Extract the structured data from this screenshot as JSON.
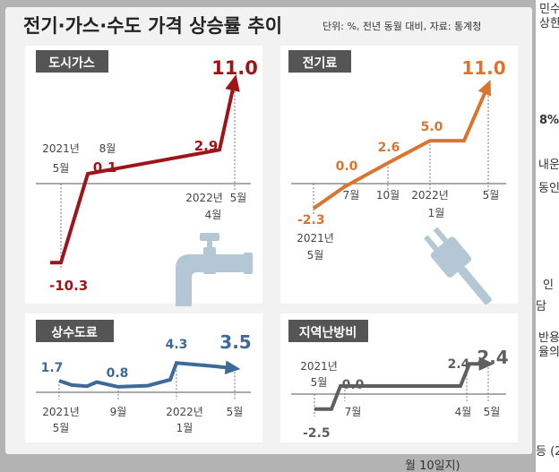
{
  "header": {
    "title": "전기·가스·수도 가격 상승률 추이",
    "unit_note": "단위: %, 전년 동월 대비, 자료: 통계청"
  },
  "side_fragments": [
    "민수",
    "상한",
    "8%",
    "내운",
    "동인",
    "인",
    "담",
    "반용",
    "율의",
    "등 (2",
    "월 10일지)"
  ],
  "colors": {
    "background": "#f2f2f2",
    "page_bg": "#b3b3b3",
    "panel_bg": "#ffffff",
    "label_bg": "#555555",
    "city_gas": "#9d1518",
    "electricity": "#d9752e",
    "water": "#3e6a98",
    "heating": "#5f5f5f",
    "icon": "#b4c7d4"
  },
  "chart_data": [
    {
      "type": "line",
      "id": "city_gas",
      "title": "도시가스",
      "x": [
        "2021년 5월",
        "8월",
        "2022년 4월",
        "5월"
      ],
      "values": [
        -10.3,
        0.1,
        2.9,
        11.0
      ],
      "labels": [
        "-10.3",
        "0.1",
        "2.9",
        "11.0"
      ],
      "tick_labels": [
        "2021년",
        "5월",
        "8월",
        "2022년",
        "4월",
        "5월"
      ],
      "ylim": [
        -11,
        11
      ]
    },
    {
      "type": "line",
      "id": "electricity",
      "title": "전기료",
      "x": [
        "2021년 5월",
        "7월",
        "10월",
        "2022년 1월",
        "5월"
      ],
      "values": [
        -2.3,
        0.0,
        2.6,
        5.0,
        11.0
      ],
      "labels": [
        "-2.3",
        "0.0",
        "2.6",
        "5.0",
        "11.0"
      ],
      "tick_labels": [
        "2021년",
        "5월",
        "7월",
        "10월",
        "2022년",
        "1월",
        "5월"
      ],
      "ylim": [
        -3,
        11
      ]
    },
    {
      "type": "line",
      "id": "water",
      "title": "상수도료",
      "x": [
        "2021년 5월",
        "9월",
        "2022년 1월",
        "5월"
      ],
      "values": [
        1.7,
        0.8,
        4.3,
        3.5
      ],
      "labels": [
        "1.7",
        "0.8",
        "4.3",
        "3.5"
      ],
      "tick_labels": [
        "2021년",
        "5월",
        "9월",
        "2022년",
        "1월",
        "5월"
      ],
      "ylim": [
        0,
        5
      ]
    },
    {
      "type": "line",
      "id": "heating",
      "title": "지역난방비",
      "x": [
        "2021년 5월",
        "7월",
        "4월",
        "5월"
      ],
      "values": [
        -2.5,
        0.0,
        2.4,
        2.4
      ],
      "labels": [
        "-2.5",
        "0.0",
        "2.4",
        "2.4"
      ],
      "tick_labels": [
        "2021년",
        "5월",
        "7월",
        "4월",
        "5월"
      ],
      "ylim": [
        -3,
        3
      ]
    }
  ]
}
